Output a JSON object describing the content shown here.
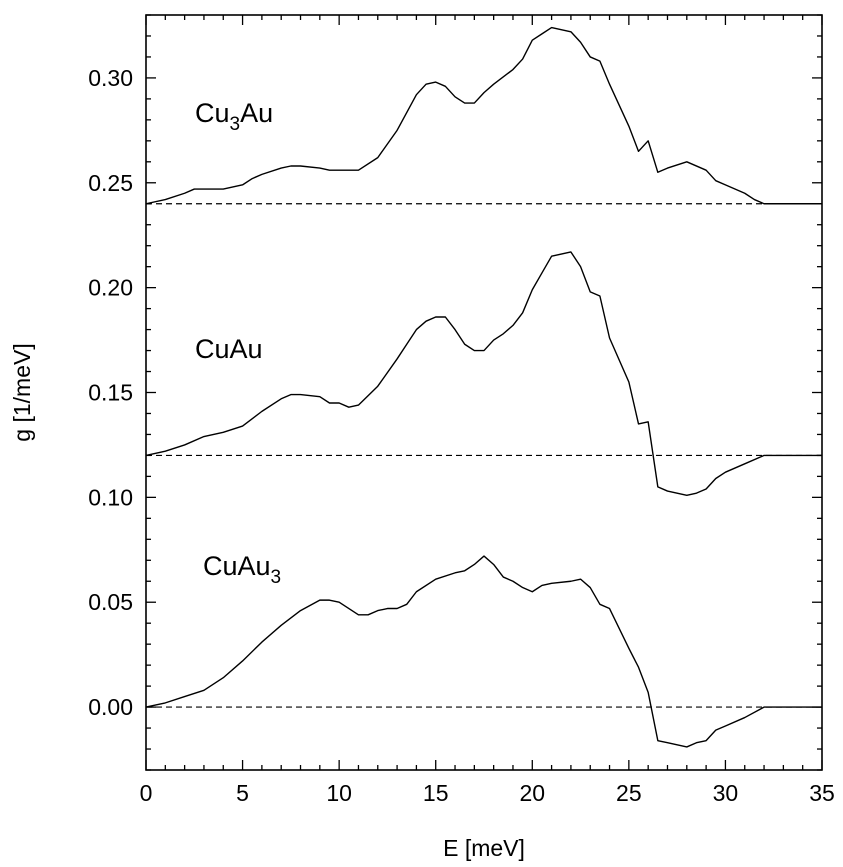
{
  "chart_data": {
    "type": "line",
    "xlabel": "E [meV]",
    "ylabel": "g [1/meV]",
    "xlim": [
      0,
      35
    ],
    "ylim": [
      -0.03,
      0.33
    ],
    "x_ticks": [
      "0",
      "5",
      "10",
      "15",
      "20",
      "25",
      "30",
      "35"
    ],
    "y_ticks": [
      "0.00",
      "0.05",
      "0.10",
      "0.15",
      "0.20",
      "0.25",
      "0.30"
    ],
    "grid": false,
    "series_labels": [
      {
        "main": "Cu",
        "sub": "3",
        "tail": "Au"
      },
      {
        "main": "CuAu",
        "sub": "",
        "tail": ""
      },
      {
        "main": "CuAu",
        "sub": "3",
        "tail": ""
      }
    ],
    "baselines": [
      0.24,
      0.12,
      0.0
    ],
    "series": [
      {
        "name": "Cu3Au",
        "x": [
          0,
          1,
          2,
          2.5,
          3,
          4,
          5,
          5.5,
          6,
          7,
          7.5,
          8,
          9,
          9.5,
          10,
          10.5,
          11,
          12,
          13,
          14,
          14.5,
          15,
          15.5,
          16,
          16.5,
          17,
          17.5,
          18,
          19,
          19.5,
          20,
          20.5,
          21,
          22,
          22.5,
          23,
          23.5,
          24,
          24.5,
          25,
          25.5,
          26,
          26.5,
          27,
          28,
          29,
          29.5,
          30,
          31,
          31.5,
          32,
          33,
          34,
          35
        ],
        "y": [
          0.24,
          0.242,
          0.245,
          0.247,
          0.247,
          0.247,
          0.249,
          0.252,
          0.254,
          0.257,
          0.258,
          0.258,
          0.257,
          0.256,
          0.256,
          0.256,
          0.256,
          0.262,
          0.275,
          0.292,
          0.297,
          0.298,
          0.296,
          0.291,
          0.288,
          0.288,
          0.293,
          0.297,
          0.304,
          0.309,
          0.318,
          0.321,
          0.324,
          0.322,
          0.317,
          0.31,
          0.308,
          0.297,
          0.287,
          0.277,
          0.265,
          0.27,
          0.255,
          0.257,
          0.26,
          0.256,
          0.251,
          0.249,
          0.245,
          0.242,
          0.24,
          0.24,
          0.24,
          0.24
        ]
      },
      {
        "name": "CuAu",
        "x": [
          0,
          1,
          2,
          3,
          4,
          5,
          6,
          7,
          7.5,
          8,
          9,
          9.5,
          10,
          10.5,
          11,
          12,
          13,
          13.5,
          14,
          14.5,
          15,
          15.5,
          16,
          16.5,
          17,
          17.5,
          18,
          18.5,
          19,
          19.5,
          20,
          20.5,
          21,
          22,
          22.5,
          23,
          23.5,
          24,
          25,
          25.5,
          26,
          26.5,
          27,
          28,
          28.5,
          29,
          29.5,
          30,
          31,
          32,
          33,
          34,
          35
        ],
        "y": [
          0.12,
          0.122,
          0.125,
          0.129,
          0.131,
          0.134,
          0.141,
          0.147,
          0.149,
          0.149,
          0.148,
          0.145,
          0.145,
          0.143,
          0.144,
          0.153,
          0.166,
          0.173,
          0.18,
          0.184,
          0.186,
          0.186,
          0.18,
          0.173,
          0.17,
          0.17,
          0.175,
          0.178,
          0.182,
          0.188,
          0.199,
          0.207,
          0.215,
          0.217,
          0.21,
          0.198,
          0.196,
          0.176,
          0.155,
          0.135,
          0.136,
          0.105,
          0.103,
          0.101,
          0.102,
          0.104,
          0.109,
          0.112,
          0.116,
          0.12,
          0.12,
          0.12,
          0.12
        ]
      },
      {
        "name": "CuAu3",
        "x": [
          0,
          1,
          2,
          3,
          4,
          5,
          6,
          7,
          8,
          9,
          9.5,
          10,
          11,
          11.5,
          12,
          12.5,
          13,
          13.5,
          14,
          15,
          16,
          16.5,
          17,
          17.5,
          18,
          18.5,
          19,
          19.5,
          20,
          20.5,
          21,
          22,
          22.5,
          23,
          23.5,
          24,
          25,
          25.5,
          26,
          26.5,
          27,
          28,
          28.5,
          29,
          29.5,
          30,
          31,
          32,
          33,
          34,
          35
        ],
        "y": [
          0.0,
          0.002,
          0.005,
          0.008,
          0.014,
          0.022,
          0.031,
          0.039,
          0.046,
          0.051,
          0.051,
          0.05,
          0.044,
          0.044,
          0.046,
          0.047,
          0.047,
          0.049,
          0.055,
          0.061,
          0.064,
          0.065,
          0.068,
          0.072,
          0.068,
          0.062,
          0.06,
          0.057,
          0.055,
          0.058,
          0.059,
          0.06,
          0.061,
          0.057,
          0.049,
          0.047,
          0.028,
          0.019,
          0.007,
          -0.016,
          -0.017,
          -0.019,
          -0.017,
          -0.016,
          -0.011,
          -0.009,
          -0.005,
          0.0,
          0.0,
          0.0,
          0.0
        ]
      }
    ]
  }
}
